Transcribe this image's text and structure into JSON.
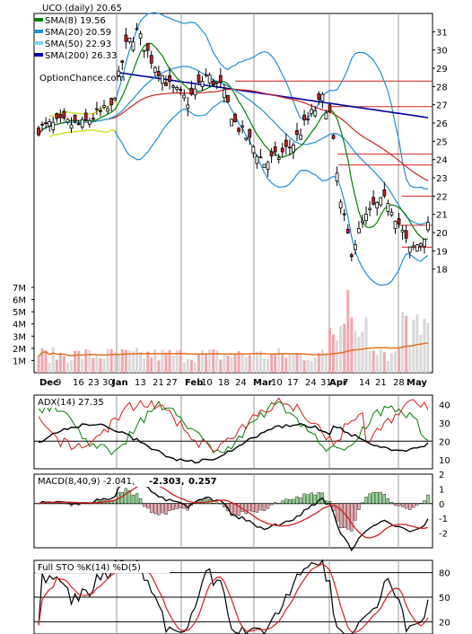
{
  "chart_data": {
    "type": "candlestick",
    "title": "UCO (daily) 20.65",
    "watermark": "OptionChance.com",
    "x_labels": [
      "Dec",
      "9",
      "16",
      "23",
      "30",
      "Jan",
      "13",
      "21",
      "27",
      "Feb",
      "10",
      "18",
      "24",
      "Mar",
      "10",
      "17",
      "24",
      "31",
      "Apr",
      "7",
      "14",
      "21",
      "28",
      "May"
    ],
    "price_panel": {
      "ylim": [
        17,
        32
      ],
      "y_ticks": [
        18,
        19,
        20,
        21,
        22,
        23,
        24,
        25,
        26,
        27,
        28,
        29,
        30,
        31
      ],
      "legend": [
        {
          "name": "SMA(8)",
          "value": "19.56",
          "color": "#008000"
        },
        {
          "name": "SMA(20)",
          "value": "20.59",
          "color": "#1f8fd6"
        },
        {
          "name": "SMA(50)",
          "value": "22.93",
          "color": "#87ceeb"
        },
        {
          "name": "SMA(200)",
          "value": "26.33",
          "color": "#0000aa"
        }
      ],
      "hlines": [
        28.3,
        26.9,
        24.3,
        23.7,
        22.0,
        20.4,
        19.2
      ]
    },
    "volume_panel": {
      "unit_ticks": [
        "1M",
        "2M",
        "3M",
        "4M",
        "5M",
        "6M",
        "7M"
      ],
      "ylim": [
        0,
        7
      ]
    },
    "adx_panel": {
      "title": "ADX(14) 27.35",
      "ylim": [
        5,
        45
      ],
      "y_ticks": [
        10,
        20,
        30,
        40
      ]
    },
    "macd_panel": {
      "title": "MACD(8,40,9) -2.041,",
      "v1": "-2.303,",
      "v2": "0.257",
      "ylim": [
        -3,
        2
      ],
      "y_ticks": [
        -2,
        -1,
        0,
        1,
        2
      ]
    },
    "sto_panel": {
      "title": "Full STO %K(14) %D(5)",
      "ylim": [
        5,
        95
      ],
      "y_ticks": [
        20,
        50,
        80
      ]
    }
  }
}
